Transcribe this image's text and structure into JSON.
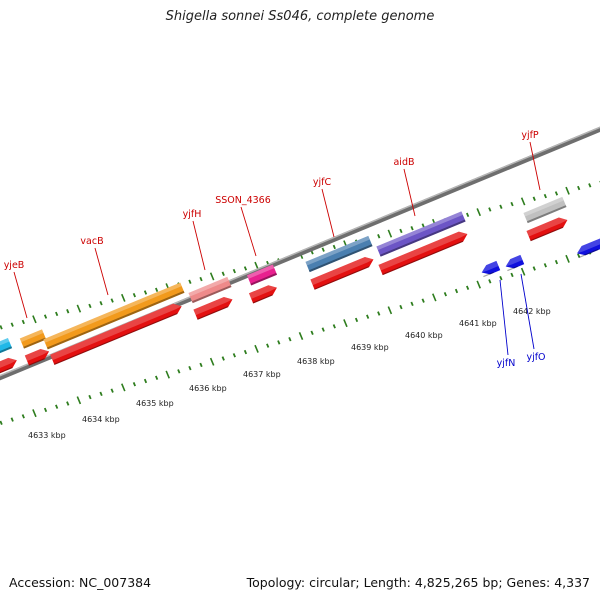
{
  "title": "Shigella sonnei Ss046, complete genome",
  "footer": {
    "accession": "Accession: NC_007384",
    "summary": "Topology: circular; Length: 4,825,265 bp; Genes: 4,337"
  },
  "colors": {
    "backbone": "#8a8a8a",
    "tick": "#2e7d1e",
    "cds": "#e31010",
    "label_forward": "#cc0000",
    "label_reverse": "#0000cc",
    "reverse_gene": "#1010dd"
  },
  "scale_labels": [
    "4633 kbp",
    "4634 kbp",
    "4635 kbp",
    "4636 kbp",
    "4637 kbp",
    "4638 kbp",
    "4639 kbp",
    "4640 kbp",
    "4641 kbp",
    "4642 kbp"
  ],
  "genes": [
    {
      "name": "yjeB",
      "color": "#e31010"
    },
    {
      "name": "vacB",
      "color": "#f29a1c"
    },
    {
      "name": "yjfH",
      "color": "#ee8a8a"
    },
    {
      "name": "SSON_4366",
      "color": "#e8208f"
    },
    {
      "name": "yjfC",
      "color": "#4a7fb0"
    },
    {
      "name": "aidB",
      "color": "#6c55c6"
    },
    {
      "name": "yjfP",
      "color": "#c0c0c0"
    },
    {
      "name": "yjfN",
      "color": "#1010dd"
    },
    {
      "name": "yjfO",
      "color": "#1010dd"
    }
  ]
}
